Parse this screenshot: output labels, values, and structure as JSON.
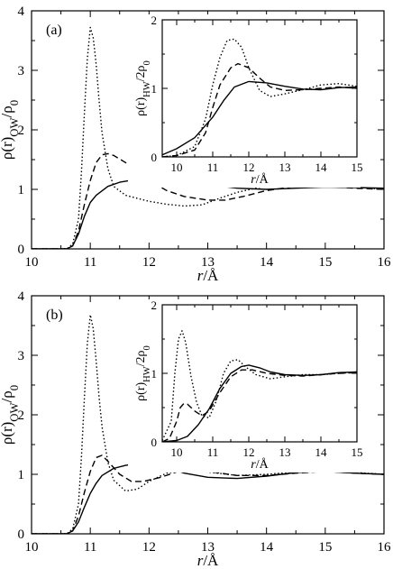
{
  "chart_data": [
    {
      "type": "line",
      "panel_label": "(a)",
      "xlabel": "r/Å",
      "ylabel": "ρ(r)OW/ρ0",
      "xlim": [
        10,
        16
      ],
      "ylim": [
        0,
        4
      ],
      "xticks": [
        10,
        11,
        12,
        13,
        14,
        15,
        16
      ],
      "yticks": [
        0,
        1,
        2,
        3,
        4
      ],
      "series": [
        {
          "style": "solid",
          "x": [
            10,
            10.6,
            10.7,
            10.8,
            10.9,
            11.0,
            11.1,
            11.3,
            11.5,
            11.8,
            12.0,
            12.5,
            13.0,
            13.5,
            14.0,
            14.5,
            15.0,
            15.5,
            16.0
          ],
          "y": [
            0,
            0,
            0.05,
            0.25,
            0.55,
            0.78,
            0.9,
            1.05,
            1.12,
            1.17,
            1.18,
            1.15,
            1.08,
            1.02,
            1.0,
            1.02,
            1.04,
            1.03,
            1.02
          ]
        },
        {
          "style": "dashed",
          "x": [
            10,
            10.6,
            10.7,
            10.8,
            10.9,
            11.0,
            11.1,
            11.2,
            11.3,
            11.4,
            11.6,
            11.8,
            12.0,
            12.3,
            12.6,
            13.0,
            13.3,
            13.6,
            14.0,
            14.5,
            15.0,
            15.5,
            16.0
          ],
          "y": [
            0,
            0,
            0.05,
            0.3,
            0.75,
            1.15,
            1.45,
            1.58,
            1.6,
            1.57,
            1.45,
            1.3,
            1.15,
            0.98,
            0.88,
            0.82,
            0.82,
            0.88,
            0.98,
            1.05,
            1.05,
            1.02,
            1.0
          ]
        },
        {
          "style": "dotted",
          "x": [
            10,
            10.6,
            10.7,
            10.8,
            10.85,
            10.9,
            10.95,
            11.0,
            11.05,
            11.1,
            11.15,
            11.2,
            11.3,
            11.4,
            11.6,
            11.8,
            12.0,
            12.3,
            12.6,
            12.9,
            13.2,
            13.5,
            14.0,
            14.5,
            15.0,
            15.5,
            16.0
          ],
          "y": [
            0,
            0,
            0.08,
            0.5,
            1.3,
            2.3,
            3.2,
            3.72,
            3.55,
            3.1,
            2.5,
            1.95,
            1.35,
            1.05,
            0.9,
            0.85,
            0.8,
            0.75,
            0.72,
            0.74,
            0.85,
            0.95,
            1.06,
            1.1,
            1.08,
            1.04,
            1.0
          ]
        }
      ],
      "inset": {
        "xlabel": "r/Å",
        "ylabel": "ρ(r)HW/2ρ0",
        "xlim": [
          9.6,
          15
        ],
        "ylim": [
          0,
          2
        ],
        "xticks": [
          10,
          11,
          12,
          13,
          14,
          15
        ],
        "yticks": [
          0,
          1,
          2
        ],
        "series": [
          {
            "style": "solid",
            "x": [
              9.6,
              10.0,
              10.5,
              11.0,
              11.3,
              11.6,
              12.0,
              12.5,
              13.0,
              13.5,
              14.0,
              14.5,
              15.0
            ],
            "y": [
              0.03,
              0.12,
              0.28,
              0.58,
              0.82,
              1.02,
              1.1,
              1.08,
              1.03,
              0.99,
              0.98,
              1.01,
              1.02
            ]
          },
          {
            "style": "dashed",
            "x": [
              9.6,
              10.0,
              10.5,
              10.8,
              11.0,
              11.2,
              11.5,
              11.7,
              12.0,
              12.3,
              12.6,
              13.0,
              13.5,
              14.0,
              14.5,
              15.0
            ],
            "y": [
              0.0,
              0.02,
              0.1,
              0.35,
              0.72,
              1.05,
              1.3,
              1.36,
              1.3,
              1.15,
              1.02,
              0.97,
              0.98,
              1.0,
              1.02,
              1.0
            ]
          },
          {
            "style": "dotted",
            "x": [
              9.6,
              10.0,
              10.5,
              10.8,
              11.0,
              11.2,
              11.4,
              11.6,
              11.8,
              12.0,
              12.3,
              12.6,
              13.0,
              13.5,
              14.0,
              14.5,
              15.0
            ],
            "y": [
              0.0,
              0.02,
              0.15,
              0.55,
              1.05,
              1.45,
              1.7,
              1.72,
              1.6,
              1.3,
              0.97,
              0.88,
              0.92,
              0.98,
              1.05,
              1.07,
              1.03
            ]
          }
        ]
      }
    },
    {
      "type": "line",
      "panel_label": "(b)",
      "xlabel": "r/Å",
      "ylabel": "ρ(r)OW/ρ0",
      "xlim": [
        10,
        16
      ],
      "ylim": [
        0,
        4
      ],
      "xticks": [
        10,
        11,
        12,
        13,
        14,
        15,
        16
      ],
      "yticks": [
        0,
        1,
        2,
        3,
        4
      ],
      "series": [
        {
          "style": "solid",
          "x": [
            10,
            10.6,
            10.7,
            10.8,
            10.9,
            11.0,
            11.1,
            11.2,
            11.4,
            11.6,
            11.8,
            12.0,
            12.3,
            12.6,
            13.0,
            13.5,
            14.0,
            14.5,
            15.0,
            15.5,
            16.0
          ],
          "y": [
            0,
            0,
            0.05,
            0.2,
            0.45,
            0.68,
            0.85,
            0.98,
            1.1,
            1.15,
            1.18,
            1.18,
            1.12,
            1.02,
            0.95,
            0.93,
            0.97,
            1.03,
            1.05,
            1.02,
            1.0
          ]
        },
        {
          "style": "dashed",
          "x": [
            10,
            10.6,
            10.7,
            10.8,
            10.9,
            11.0,
            11.1,
            11.2,
            11.3,
            11.5,
            11.7,
            11.9,
            12.2,
            12.5,
            13.0,
            13.5,
            14.0,
            14.5,
            15.0,
            15.5,
            16.0
          ],
          "y": [
            0,
            0,
            0.05,
            0.3,
            0.7,
            1.05,
            1.28,
            1.32,
            1.22,
            1.0,
            0.88,
            0.88,
            0.95,
            1.05,
            1.05,
            0.98,
            0.98,
            1.02,
            1.05,
            1.02,
            1.0
          ]
        },
        {
          "style": "dotted",
          "x": [
            10,
            10.6,
            10.7,
            10.8,
            10.85,
            10.9,
            10.95,
            11.0,
            11.05,
            11.1,
            11.15,
            11.2,
            11.3,
            11.4,
            11.6,
            11.8,
            12.0,
            12.3,
            12.6,
            13.0,
            13.5,
            14.0,
            14.5,
            15.0,
            15.5,
            16.0
          ],
          "y": [
            0,
            0,
            0.08,
            0.5,
            1.3,
            2.3,
            3.2,
            3.68,
            3.45,
            2.9,
            2.3,
            1.8,
            1.2,
            0.9,
            0.72,
            0.75,
            0.88,
            1.02,
            1.06,
            1.04,
            0.98,
            1.0,
            1.04,
            1.07,
            1.03,
            1.0
          ]
        }
      ],
      "inset": {
        "xlabel": "r/Å",
        "ylabel": "ρ(r)HW/2ρ0",
        "xlim": [
          9.6,
          15
        ],
        "ylim": [
          0,
          2
        ],
        "xticks": [
          10,
          11,
          12,
          13,
          14,
          15
        ],
        "yticks": [
          0,
          1,
          2
        ],
        "series": [
          {
            "style": "solid",
            "x": [
              9.6,
              10.0,
              10.3,
              10.6,
              10.9,
              11.2,
              11.5,
              11.8,
              12.0,
              12.3,
              12.6,
              13.0,
              13.5,
              14.0,
              14.5,
              15.0
            ],
            "y": [
              0.0,
              0.02,
              0.08,
              0.25,
              0.48,
              0.78,
              1.0,
              1.1,
              1.12,
              1.08,
              1.02,
              0.98,
              0.97,
              0.98,
              1.01,
              1.02
            ]
          },
          {
            "style": "dashed",
            "x": [
              9.6,
              9.8,
              10.0,
              10.1,
              10.2,
              10.3,
              10.5,
              10.7,
              10.9,
              11.2,
              11.5,
              11.8,
              12.1,
              12.5,
              13.0,
              13.5,
              14.0,
              14.5,
              15.0
            ],
            "y": [
              0.0,
              0.05,
              0.3,
              0.5,
              0.56,
              0.55,
              0.45,
              0.38,
              0.45,
              0.72,
              0.95,
              1.05,
              1.05,
              1.0,
              0.97,
              0.96,
              0.98,
              1.0,
              1.01
            ]
          },
          {
            "style": "dotted",
            "x": [
              9.6,
              9.85,
              9.95,
              10.05,
              10.15,
              10.25,
              10.4,
              10.55,
              10.7,
              10.9,
              11.1,
              11.3,
              11.5,
              11.7,
              11.9,
              12.2,
              12.6,
              13.0,
              13.5,
              14.0,
              14.5,
              15.0
            ],
            "y": [
              0.02,
              0.3,
              1.0,
              1.5,
              1.62,
              1.45,
              0.95,
              0.58,
              0.38,
              0.35,
              0.6,
              1.0,
              1.18,
              1.2,
              1.1,
              0.98,
              0.92,
              0.95,
              0.98,
              0.98,
              1.0,
              1.02
            ]
          }
        ]
      }
    }
  ]
}
